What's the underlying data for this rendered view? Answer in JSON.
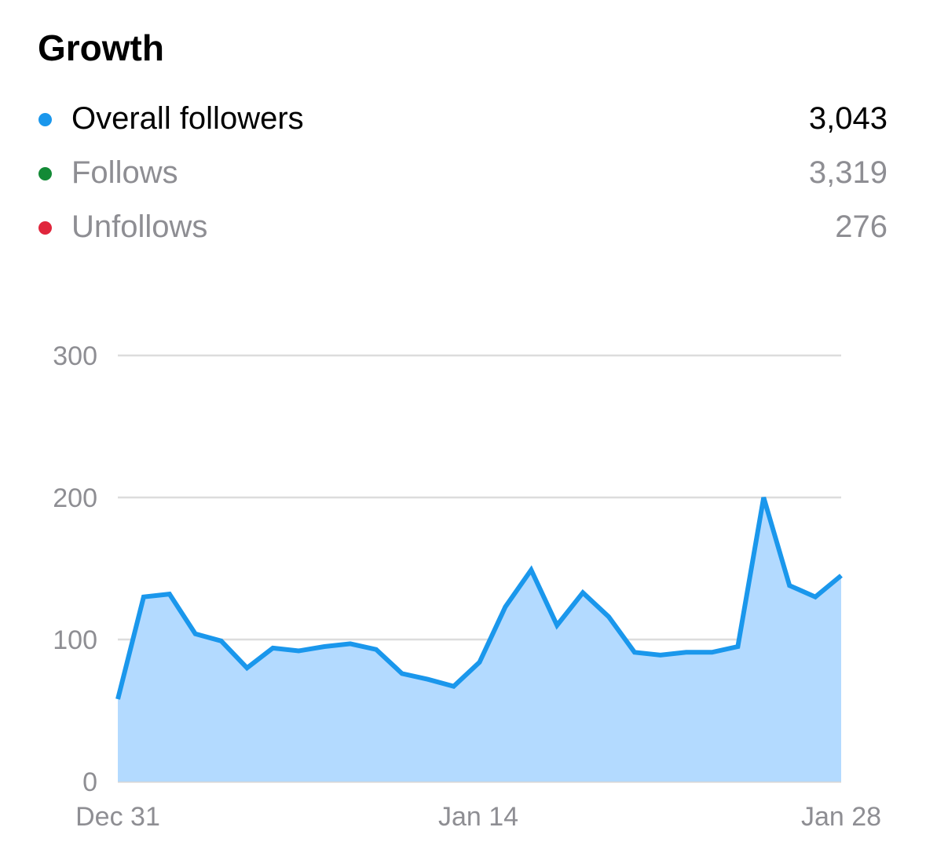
{
  "title": "Growth",
  "legend": [
    {
      "label": "Overall followers",
      "value": "3,043",
      "color": "#1a97ec",
      "emphasis": true
    },
    {
      "label": "Follows",
      "value": "3,319",
      "color": "#138a36",
      "emphasis": false
    },
    {
      "label": "Unfollows",
      "value": "276",
      "color": "#e0263c",
      "emphasis": false
    }
  ],
  "chart_data": {
    "type": "area",
    "x_ticks": [
      "Dec 31",
      "Jan 14",
      "Jan 28"
    ],
    "y_ticks": [
      "300",
      "200",
      "100",
      "0"
    ],
    "ylim": [
      0,
      300
    ],
    "grid": true,
    "line_color": "#1a97ec",
    "fill_color": "#b3daff",
    "series": [
      {
        "name": "Overall followers",
        "values": [
          58,
          130,
          132,
          104,
          99,
          80,
          94,
          92,
          95,
          97,
          93,
          76,
          72,
          67,
          84,
          123,
          149,
          110,
          133,
          116,
          91,
          89,
          91,
          91,
          95,
          200,
          138,
          130,
          145
        ]
      }
    ]
  }
}
